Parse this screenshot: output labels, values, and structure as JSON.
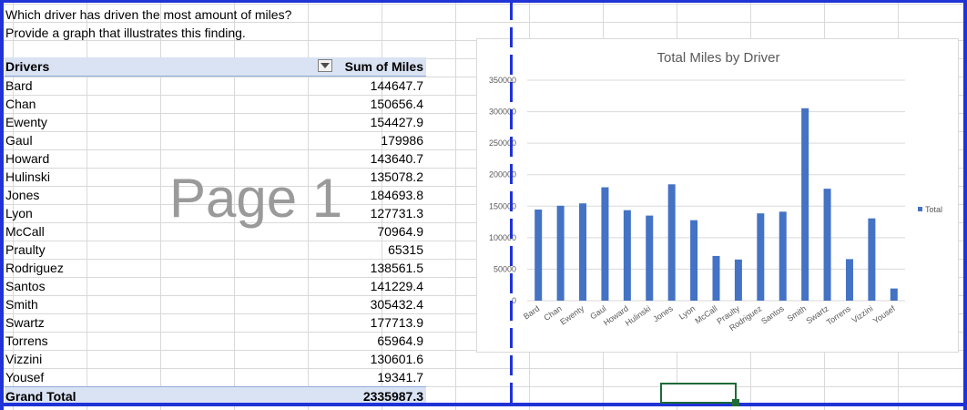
{
  "question": {
    "line1": "Which driver has driven the most amount of miles?",
    "line2": "Provide a graph that illustrates this finding."
  },
  "pivot": {
    "header_name": "Drivers",
    "header_value": "Sum of Miles",
    "rows": [
      {
        "name": "Bard",
        "value": "144647.7"
      },
      {
        "name": "Chan",
        "value": "150656.4"
      },
      {
        "name": "Ewenty",
        "value": "154427.9"
      },
      {
        "name": "Gaul",
        "value": "179986"
      },
      {
        "name": "Howard",
        "value": "143640.7"
      },
      {
        "name": "Hulinski",
        "value": "135078.2"
      },
      {
        "name": "Jones",
        "value": "184693.8"
      },
      {
        "name": "Lyon",
        "value": "127731.3"
      },
      {
        "name": "McCall",
        "value": "70964.9"
      },
      {
        "name": "Praulty",
        "value": "65315"
      },
      {
        "name": "Rodriguez",
        "value": "138561.5"
      },
      {
        "name": "Santos",
        "value": "141229.4"
      },
      {
        "name": "Smith",
        "value": "305432.4"
      },
      {
        "name": "Swartz",
        "value": "177713.9"
      },
      {
        "name": "Torrens",
        "value": "65964.9"
      },
      {
        "name": "Vizzini",
        "value": "130601.6"
      },
      {
        "name": "Yousef",
        "value": "19341.7"
      }
    ],
    "total_label": "Grand Total",
    "total_value": "2335987.3"
  },
  "watermark": "Page 1",
  "colors": {
    "bar": "#4472c4",
    "pivot_header": "#dae3f3",
    "page_break": "#1f33d6",
    "selection": "#1e6b38"
  },
  "icons": {
    "filter": "filter-dropdown-icon"
  },
  "chart_data": {
    "type": "bar",
    "title": "Total Miles by Driver",
    "xlabel": "",
    "ylabel": "",
    "categories": [
      "Bard",
      "Chan",
      "Ewenty",
      "Gaul",
      "Howard",
      "Hulinski",
      "Jones",
      "Lyon",
      "McCall",
      "Praulty",
      "Rodriguez",
      "Santos",
      "Smith",
      "Swartz",
      "Torrens",
      "Vizzini",
      "Yousef"
    ],
    "series": [
      {
        "name": "Total",
        "values": [
          144647.7,
          150656.4,
          154427.9,
          179986,
          143640.7,
          135078.2,
          184693.8,
          127731.3,
          70964.9,
          65315,
          138561.5,
          141229.4,
          305432.4,
          177713.9,
          65964.9,
          130601.6,
          19341.7
        ]
      }
    ],
    "y_ticks": [
      "0",
      "50000",
      "100000",
      "150000",
      "200000",
      "250000",
      "300000",
      "350000"
    ],
    "ylim": [
      0,
      350000
    ],
    "grid": true,
    "legend": "right"
  }
}
